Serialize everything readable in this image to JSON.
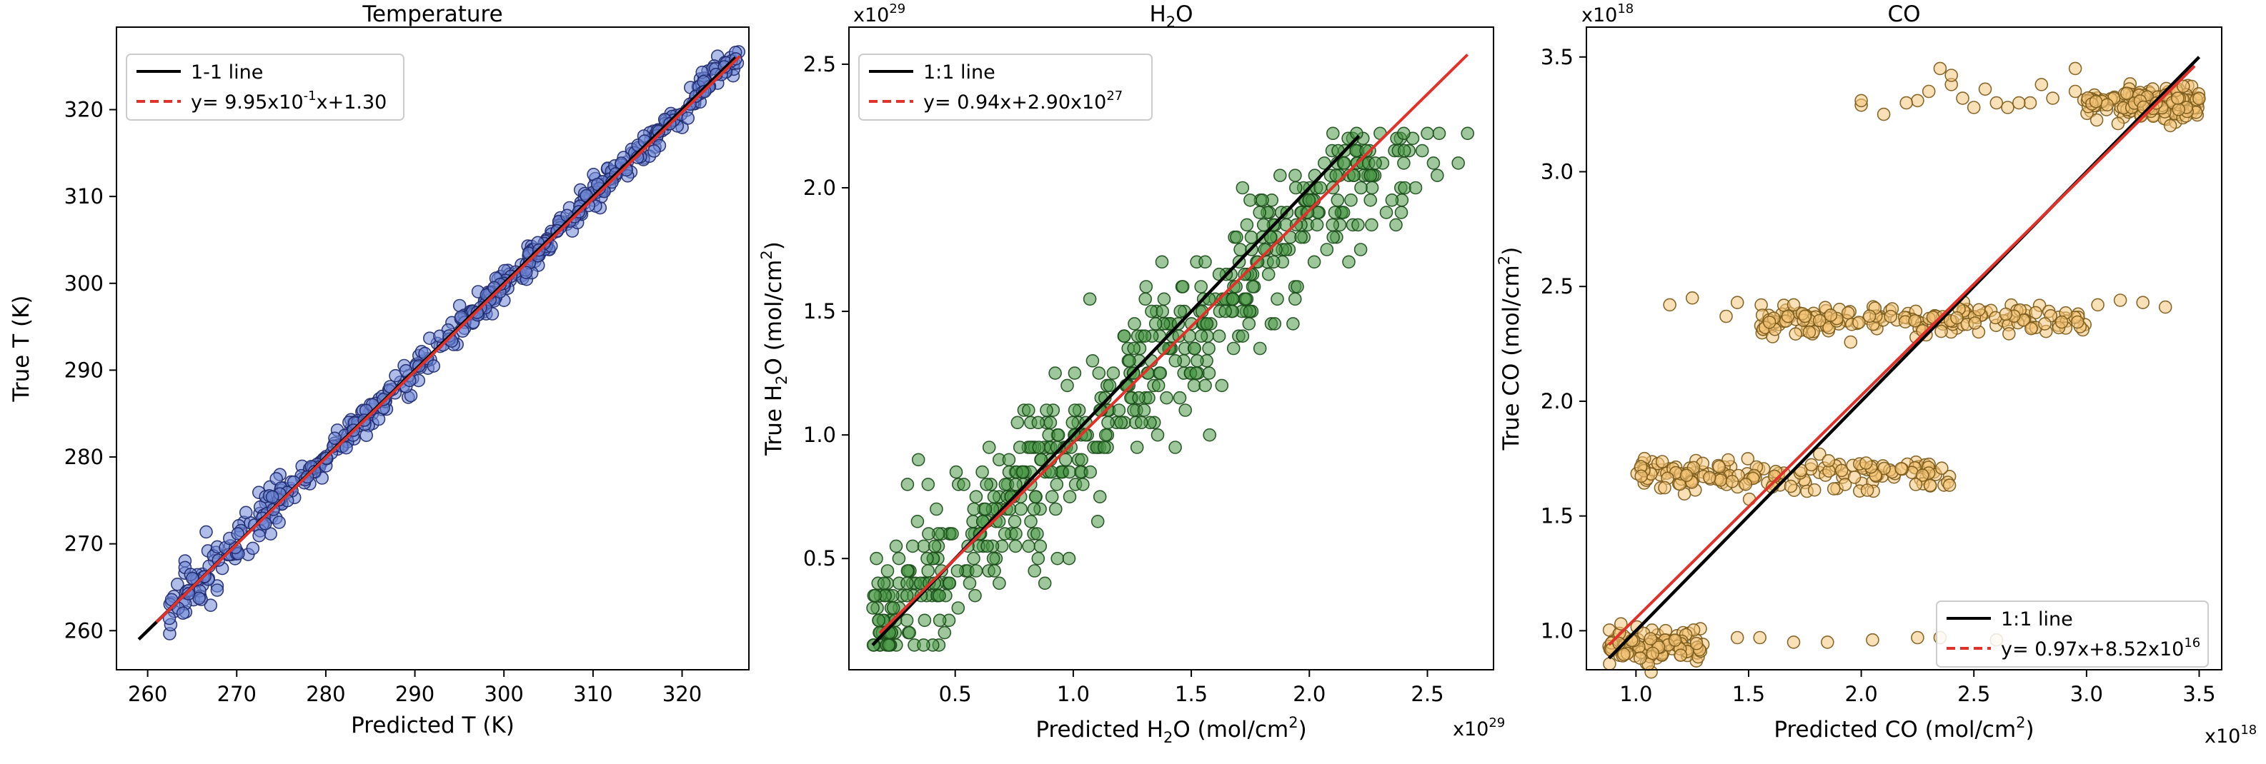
{
  "chart_data": [
    {
      "type": "scatter",
      "title": "Temperature",
      "xlabel": "Predicted T (K)",
      "ylabel": "True T (K)",
      "xlim": [
        256.5,
        327.5
      ],
      "ylim": [
        255.5,
        329.5
      ],
      "xticks": [
        260,
        270,
        280,
        290,
        300,
        310,
        320
      ],
      "yticks": [
        260,
        270,
        280,
        290,
        300,
        310,
        320
      ],
      "x_offset_label": "",
      "y_offset_label": "",
      "legend_position": "upper-left",
      "colors": {
        "point_fill": "#6f86d6",
        "point_edge": "#1f2a6e",
        "identity": "#000000",
        "fit": "#e0322b"
      },
      "series": [
        {
          "name": "points",
          "generator": "diagonal-band",
          "x_range": [
            262,
            326.5
          ],
          "spread": 0.9,
          "count": 520
        }
      ],
      "identity_line": {
        "label": "1-1 line",
        "x": [
          259,
          326
        ],
        "y": [
          259,
          326
        ]
      },
      "fit_line": {
        "label_prefix": "y= ",
        "label_coef": "9.95x10",
        "label_coef_exp": "-1",
        "label_rest": "x+1.30",
        "slope": 0.995,
        "intercept": 1.3,
        "x": [
          261,
          326.5
        ]
      }
    },
    {
      "type": "scatter",
      "title_main": "H",
      "title_sub": "2",
      "title_tail": "O",
      "xlabel_main": "Predicted H",
      "xlabel_sub": "2",
      "xlabel_mid": "O (mol/cm",
      "xlabel_sup": "2",
      "xlabel_end": ")",
      "ylabel_main": "True H",
      "ylabel_sub": "2",
      "ylabel_mid": "O (mol/cm",
      "ylabel_sup": "2",
      "ylabel_end": ")",
      "xlim": [
        0.05,
        2.78
      ],
      "ylim": [
        0.05,
        2.65
      ],
      "xticks": [
        0.5,
        1.0,
        1.5,
        2.0,
        2.5
      ],
      "xtick_labels": [
        "0.5",
        "1.0",
        "1.5",
        "2.0",
        "2.5"
      ],
      "yticks": [
        0.5,
        1.0,
        1.5,
        2.0,
        2.5
      ],
      "ytick_labels": [
        "0.5",
        "1.0",
        "1.5",
        "2.0",
        "2.5"
      ],
      "x_offset_label": "x10",
      "x_offset_exp": "29",
      "y_offset_label": "x10",
      "y_offset_exp": "29",
      "legend_position": "upper-left",
      "colors": {
        "point_fill": "#4f9a4a",
        "point_edge": "#1a4d18",
        "identity": "#000000",
        "fit": "#e0322b"
      },
      "series": [
        {
          "name": "points",
          "generator": "discrete-levels",
          "levels": [
            0.15,
            0.2,
            0.25,
            0.3,
            0.35,
            0.4,
            0.45,
            0.5,
            0.55,
            0.6,
            0.65,
            0.7,
            0.75,
            0.8,
            0.85,
            0.9,
            0.95,
            1.0,
            1.05,
            1.1,
            1.15,
            1.2,
            1.25,
            1.3,
            1.35,
            1.4,
            1.45,
            1.5,
            1.55,
            1.6,
            1.65,
            1.7,
            1.75,
            1.8,
            1.85,
            1.9,
            1.95,
            2.0,
            2.05,
            2.1,
            2.15,
            2.2
          ],
          "spread": 0.17,
          "count": 560
        }
      ],
      "identity_line": {
        "label": "1:1 line",
        "x": [
          0.15,
          2.21
        ],
        "y": [
          0.15,
          2.21
        ]
      },
      "fit_line": {
        "label_prefix": "y= ",
        "label_coef": "0.94x+2.90x10",
        "label_coef_exp": "27",
        "label_rest": "",
        "slope": 0.94,
        "intercept": 0.029,
        "x": [
          0.18,
          2.67
        ]
      }
    },
    {
      "type": "scatter",
      "title": "CO",
      "xlabel_main": "Predicted CO (mol/cm",
      "xlabel_sup": "2",
      "xlabel_end": ")",
      "ylabel_main": "True CO (mol/cm",
      "ylabel_sup": "2",
      "ylabel_end": ")",
      "xlim": [
        0.78,
        3.6
      ],
      "ylim": [
        0.83,
        3.63
      ],
      "xticks": [
        1.0,
        1.5,
        2.0,
        2.5,
        3.0,
        3.5
      ],
      "xtick_labels": [
        "1.0",
        "1.5",
        "2.0",
        "2.5",
        "3.0",
        "3.5"
      ],
      "yticks": [
        1.0,
        1.5,
        2.0,
        2.5,
        3.0,
        3.5
      ],
      "ytick_labels": [
        "1.0",
        "1.5",
        "2.0",
        "2.5",
        "3.0",
        "3.5"
      ],
      "x_offset_label": "x10",
      "x_offset_exp": "18",
      "y_offset_label": "x10",
      "y_offset_exp": "18",
      "legend_position": "lower-right",
      "colors": {
        "point_fill": "#f5c67a",
        "point_edge": "#7a5a1a",
        "identity": "#000000",
        "fit": "#e0322b"
      },
      "series": [
        {
          "name": "cluster-0.93",
          "y_center": 0.93,
          "x_range": [
            0.88,
            1.3
          ],
          "count": 120
        },
        {
          "name": "cluster-1.68",
          "y_center": 1.68,
          "x_range": [
            1.0,
            2.4
          ],
          "count": 170
        },
        {
          "name": "cluster-2.35",
          "y_center": 2.35,
          "x_range": [
            1.55,
            3.0
          ],
          "count": 180
        },
        {
          "name": "cluster-3.3",
          "y_center": 3.3,
          "x_range": [
            2.95,
            3.5
          ],
          "count": 180
        },
        {
          "name": "outliers",
          "points": [
            [
              1.45,
              0.97
            ],
            [
              1.55,
              0.97
            ],
            [
              1.7,
              0.95
            ],
            [
              1.85,
              0.95
            ],
            [
              2.05,
              0.96
            ],
            [
              2.25,
              0.97
            ],
            [
              2.35,
              0.97
            ],
            [
              2.6,
              0.96
            ],
            [
              1.15,
              2.42
            ],
            [
              1.25,
              2.45
            ],
            [
              1.4,
              2.37
            ],
            [
              1.45,
              2.43
            ],
            [
              1.7,
              2.42
            ],
            [
              1.75,
              2.37
            ],
            [
              3.05,
              2.42
            ],
            [
              3.15,
              2.44
            ],
            [
              3.25,
              2.43
            ],
            [
              3.35,
              2.41
            ],
            [
              2.0,
              3.29
            ],
            [
              2.0,
              3.31
            ],
            [
              2.1,
              3.25
            ],
            [
              2.25,
              3.31
            ],
            [
              2.3,
              3.35
            ],
            [
              2.35,
              3.45
            ],
            [
              2.4,
              3.38
            ],
            [
              2.45,
              3.32
            ],
            [
              2.55,
              3.36
            ],
            [
              2.6,
              3.3
            ],
            [
              2.65,
              3.28
            ],
            [
              2.75,
              3.3
            ],
            [
              2.8,
              3.38
            ],
            [
              2.85,
              3.32
            ],
            [
              2.4,
              3.42
            ],
            [
              2.95,
              3.45
            ],
            [
              2.95,
              3.35
            ],
            [
              2.7,
              3.3
            ],
            [
              2.2,
              3.3
            ],
            [
              2.5,
              3.28
            ]
          ]
        }
      ],
      "identity_line": {
        "label": "1:1 line",
        "x": [
          0.88,
          3.5
        ],
        "y": [
          0.88,
          3.5
        ]
      },
      "fit_line": {
        "label_prefix": "y= ",
        "label_coef": "0.97x+8.52x10",
        "label_coef_exp": "16",
        "label_rest": "",
        "slope": 0.97,
        "intercept": 0.0852,
        "x": [
          0.88,
          3.48
        ]
      }
    }
  ]
}
